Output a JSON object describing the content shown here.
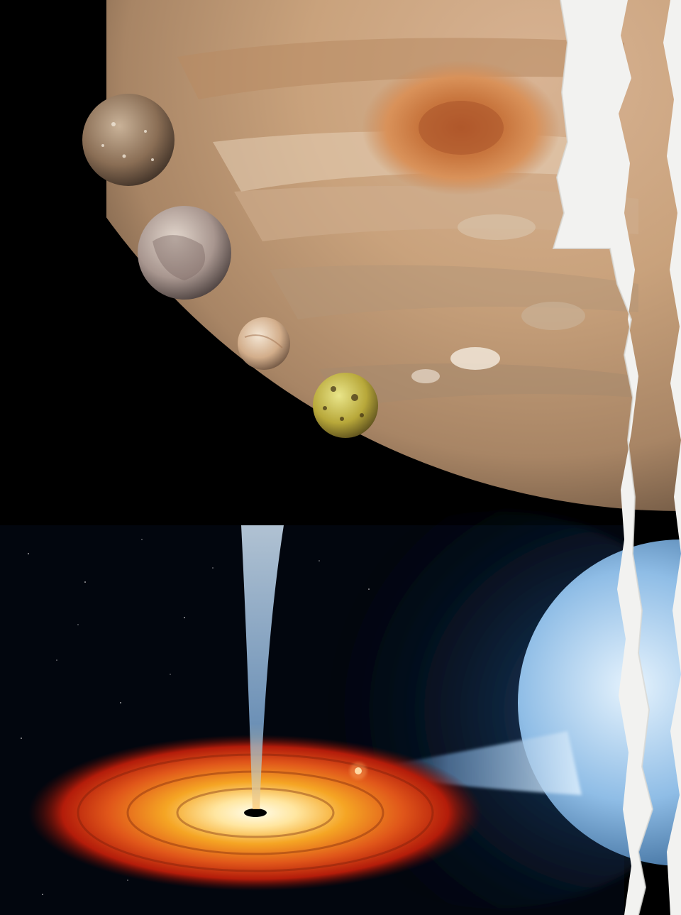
{
  "composition": {
    "panels": [
      {
        "id": "jupiter-system",
        "subject": "jupiter-with-moons"
      },
      {
        "id": "black-hole-system",
        "subject": "black-hole-accretion-disk-with-companion-star"
      }
    ],
    "moons": [
      "callisto",
      "ganymede",
      "europa",
      "io"
    ],
    "colors": {
      "space": "#000000",
      "paper": "#f2f2f0",
      "jupiter_base": "#c9a27c",
      "jupiter_band": "#b07a4f",
      "red_spot": "#c0693a",
      "disk_outer": "#b31c0a",
      "disk_mid": "#f08a1c",
      "disk_inner": "#ffe6a0",
      "jet": "#9fc7ea",
      "star_blue": "#7fb3e0",
      "star_light": "#d9ecfb"
    }
  }
}
